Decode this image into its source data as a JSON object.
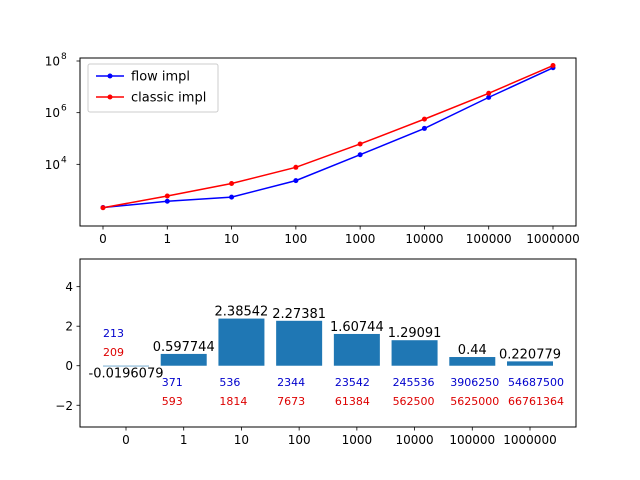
{
  "chart_data": [
    {
      "type": "line",
      "categories": [
        "0",
        "1",
        "10",
        "100",
        "1000",
        "10000",
        "100000",
        "1000000"
      ],
      "yscale": "log",
      "ylim": [
        100,
        100000000
      ],
      "yticks": [
        {
          "value": 10000,
          "base": "10",
          "exp": "4"
        },
        {
          "value": 1000000,
          "base": "10",
          "exp": "6"
        },
        {
          "value": 100000000,
          "base": "10",
          "exp": "8"
        }
      ],
      "legend_position": "upper-left",
      "grid": false,
      "series": [
        {
          "name": "flow impl",
          "color": "#0000ff",
          "values": [
            213,
            371,
            536,
            2344,
            23542,
            245536,
            3906250,
            54687500
          ]
        },
        {
          "name": "classic impl",
          "color": "#ff0000",
          "values": [
            209,
            593,
            1814,
            7673,
            61384,
            562500,
            5625000,
            66761364
          ]
        }
      ]
    },
    {
      "type": "bar",
      "categories": [
        "0",
        "1",
        "10",
        "100",
        "1000",
        "10000",
        "100000",
        "1000000"
      ],
      "ylim": [
        -3.1,
        5.4
      ],
      "yticks": [
        {
          "value": -2,
          "label": "−2"
        },
        {
          "value": 0,
          "label": "0"
        },
        {
          "value": 2,
          "label": "2"
        },
        {
          "value": 4,
          "label": "4"
        }
      ],
      "bar_color": "#1f77b4",
      "grid": false,
      "values": [
        -0.0196079,
        0.597744,
        2.38542,
        2.27381,
        1.60744,
        1.29091,
        0.44,
        0.220779
      ],
      "value_labels": [
        "-0.0196079",
        "0.597744",
        "2.38542",
        "2.27381",
        "1.60744",
        "1.29091",
        "0.44",
        "0.220779"
      ],
      "annotations": [
        {
          "color": "#0000cc",
          "labels": [
            "213",
            "371",
            "536",
            "2344",
            "23542",
            "245536",
            "3906250",
            "54687500"
          ]
        },
        {
          "color": "#dd0000",
          "labels": [
            "209",
            "593",
            "1814",
            "7673",
            "61384",
            "562500",
            "5625000",
            "66761364"
          ]
        }
      ]
    }
  ]
}
